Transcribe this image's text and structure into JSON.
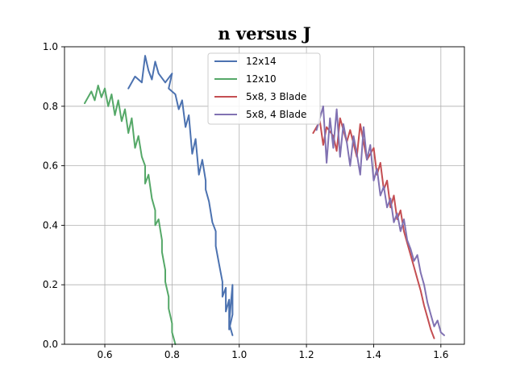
{
  "chart_data": {
    "type": "line",
    "title": "n versus J",
    "xlabel": "",
    "ylabel": "",
    "xlim": [
      0.48,
      1.67
    ],
    "ylim": [
      0.0,
      1.0
    ],
    "xticks": [
      0.6,
      0.8,
      1.0,
      1.2,
      1.4,
      1.6
    ],
    "yticks": [
      0.0,
      0.2,
      0.4,
      0.6,
      0.8,
      1.0
    ],
    "xtick_labels": [
      "0.6",
      "0.8",
      "1.0",
      "1.2",
      "1.4",
      "1.6"
    ],
    "ytick_labels": [
      "0.0",
      "0.2",
      "0.4",
      "0.6",
      "0.8",
      "1.0"
    ],
    "grid": true,
    "legend_position": "top-center",
    "series": [
      {
        "name": "12x14",
        "color": "#4c72b0",
        "x": [
          0.67,
          0.69,
          0.71,
          0.72,
          0.73,
          0.74,
          0.75,
          0.76,
          0.78,
          0.8,
          0.79,
          0.81,
          0.82,
          0.83,
          0.84,
          0.85,
          0.86,
          0.87,
          0.88,
          0.89,
          0.9,
          0.9,
          0.91,
          0.92,
          0.93,
          0.93,
          0.94,
          0.95,
          0.95,
          0.96,
          0.96,
          0.97,
          0.97,
          0.98,
          0.98,
          0.97,
          0.98
        ],
        "y": [
          0.86,
          0.9,
          0.88,
          0.97,
          0.92,
          0.89,
          0.95,
          0.91,
          0.88,
          0.91,
          0.86,
          0.84,
          0.79,
          0.82,
          0.73,
          0.77,
          0.64,
          0.69,
          0.57,
          0.62,
          0.55,
          0.52,
          0.48,
          0.41,
          0.38,
          0.33,
          0.27,
          0.21,
          0.16,
          0.19,
          0.11,
          0.15,
          0.05,
          0.1,
          0.2,
          0.07,
          0.03
        ]
      },
      {
        "name": "12x10",
        "color": "#55a868",
        "x": [
          0.54,
          0.56,
          0.57,
          0.58,
          0.59,
          0.6,
          0.61,
          0.62,
          0.63,
          0.64,
          0.65,
          0.66,
          0.67,
          0.68,
          0.69,
          0.7,
          0.71,
          0.72,
          0.72,
          0.73,
          0.74,
          0.75,
          0.75,
          0.76,
          0.77,
          0.77,
          0.78,
          0.78,
          0.79,
          0.79,
          0.8,
          0.8,
          0.81
        ],
        "y": [
          0.81,
          0.85,
          0.82,
          0.87,
          0.83,
          0.86,
          0.8,
          0.84,
          0.77,
          0.82,
          0.75,
          0.79,
          0.71,
          0.76,
          0.66,
          0.7,
          0.63,
          0.6,
          0.54,
          0.57,
          0.49,
          0.45,
          0.4,
          0.42,
          0.35,
          0.31,
          0.25,
          0.21,
          0.16,
          0.12,
          0.07,
          0.04,
          0.0
        ]
      },
      {
        "name": "5x8, 3 Blade",
        "color": "#c44e52",
        "x": [
          1.22,
          1.24,
          1.25,
          1.26,
          1.28,
          1.29,
          1.3,
          1.32,
          1.33,
          1.35,
          1.36,
          1.38,
          1.4,
          1.41,
          1.42,
          1.43,
          1.44,
          1.45,
          1.46,
          1.47,
          1.48,
          1.49,
          1.5,
          1.51,
          1.52,
          1.53,
          1.54,
          1.55,
          1.56,
          1.57,
          1.58
        ],
        "y": [
          0.71,
          0.75,
          0.67,
          0.73,
          0.7,
          0.65,
          0.76,
          0.68,
          0.72,
          0.63,
          0.74,
          0.62,
          0.66,
          0.57,
          0.61,
          0.52,
          0.55,
          0.46,
          0.5,
          0.42,
          0.45,
          0.38,
          0.34,
          0.3,
          0.26,
          0.22,
          0.18,
          0.13,
          0.09,
          0.05,
          0.02
        ]
      },
      {
        "name": "5x8, 4 Blade",
        "color": "#8172b2",
        "x": [
          1.23,
          1.25,
          1.26,
          1.27,
          1.28,
          1.29,
          1.3,
          1.31,
          1.32,
          1.33,
          1.34,
          1.35,
          1.36,
          1.37,
          1.38,
          1.39,
          1.4,
          1.41,
          1.42,
          1.43,
          1.44,
          1.45,
          1.46,
          1.47,
          1.48,
          1.49,
          1.5,
          1.51,
          1.52,
          1.53,
          1.54,
          1.55,
          1.56,
          1.57,
          1.58,
          1.59,
          1.6,
          1.61
        ],
        "y": [
          0.72,
          0.8,
          0.61,
          0.76,
          0.66,
          0.79,
          0.63,
          0.74,
          0.68,
          0.6,
          0.7,
          0.64,
          0.57,
          0.73,
          0.62,
          0.67,
          0.55,
          0.59,
          0.5,
          0.53,
          0.46,
          0.49,
          0.41,
          0.44,
          0.38,
          0.42,
          0.35,
          0.32,
          0.28,
          0.3,
          0.24,
          0.2,
          0.14,
          0.1,
          0.06,
          0.08,
          0.04,
          0.03
        ]
      }
    ]
  }
}
